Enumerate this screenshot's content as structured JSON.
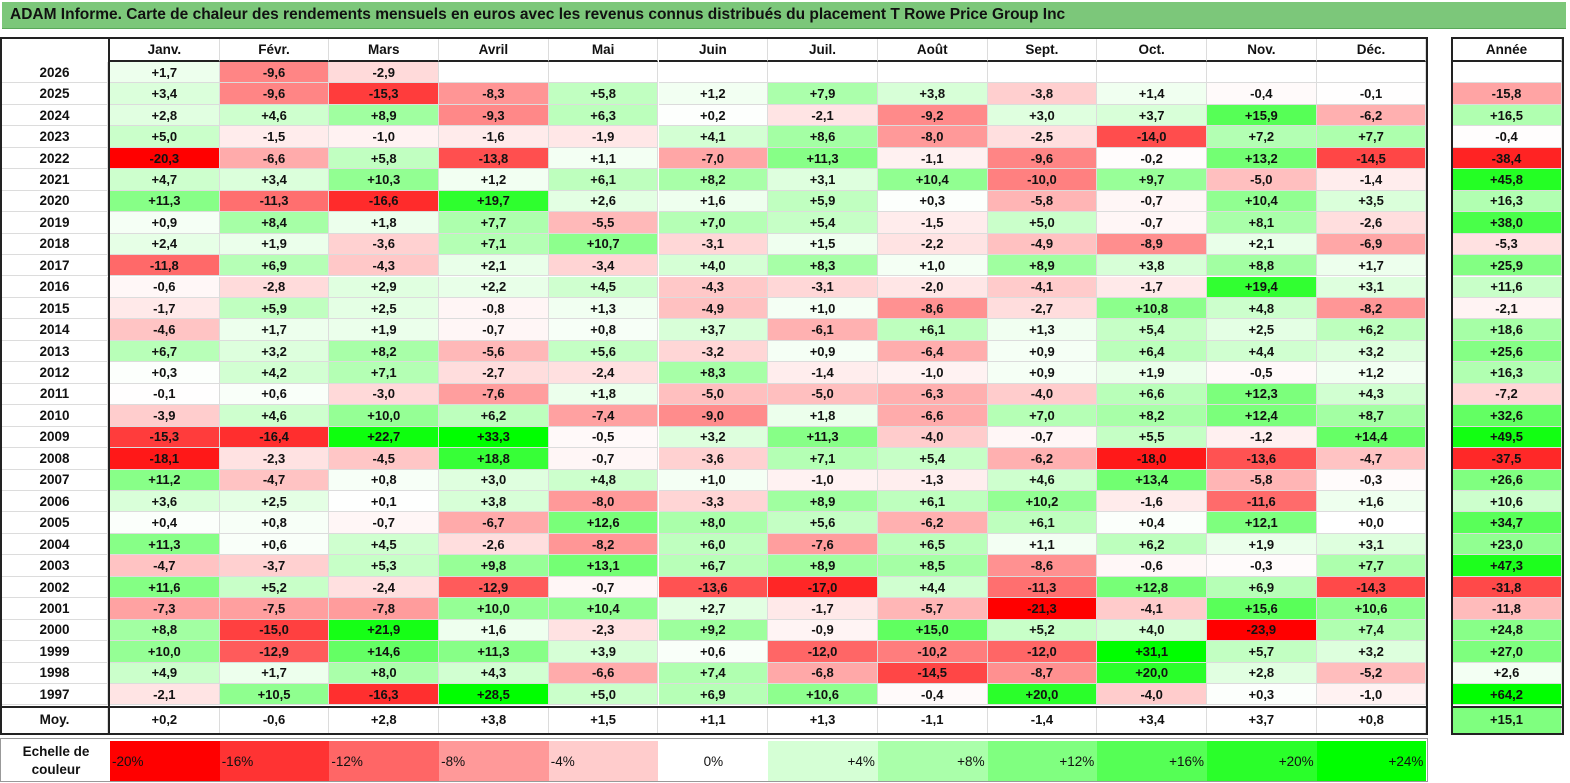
{
  "title": "ADAM Informe. Carte de chaleur des rendements mensuels en euros avec les revenus connus distribués du placement T Rowe Price Group Inc",
  "chart_data": {
    "type": "heatmap",
    "title": "ADAM Informe. Carte de chaleur des rendements mensuels en euros avec les revenus connus distribués du placement T Rowe Price Group Inc",
    "columns": [
      "Janv.",
      "Févr.",
      "Mars",
      "Avril",
      "Mai",
      "Juin",
      "Juil.",
      "Août",
      "Sept.",
      "Oct.",
      "Nov.",
      "Déc."
    ],
    "year_header": "Année",
    "rows": [
      {
        "label": "2026",
        "values": [
          "+1,7",
          "-9,6",
          "-2,9",
          "",
          "",
          "",
          "",
          "",
          "",
          "",
          "",
          ""
        ],
        "year": ""
      },
      {
        "label": "2025",
        "values": [
          "+3,4",
          "-9,6",
          "-15,3",
          "-8,3",
          "+5,8",
          "+1,2",
          "+7,9",
          "+3,8",
          "-3,8",
          "+1,4",
          "-0,4",
          "-0,1"
        ],
        "year": "-15,8"
      },
      {
        "label": "2024",
        "values": [
          "+2,8",
          "+4,6",
          "+8,9",
          "-9,3",
          "+6,3",
          "+0,2",
          "-2,1",
          "-9,2",
          "+3,0",
          "+3,7",
          "+15,9",
          "-6,2"
        ],
        "year": "+16,5"
      },
      {
        "label": "2023",
        "values": [
          "+5,0",
          "-1,5",
          "-1,0",
          "-1,6",
          "-1,9",
          "+4,1",
          "+8,6",
          "-8,0",
          "-2,5",
          "-14,0",
          "+7,2",
          "+7,7"
        ],
        "year": "-0,4"
      },
      {
        "label": "2022",
        "values": [
          "-20,3",
          "-6,6",
          "+5,8",
          "-13,8",
          "+1,1",
          "-7,0",
          "+11,3",
          "-1,1",
          "-9,6",
          "-0,2",
          "+13,2",
          "-14,5"
        ],
        "year": "-38,4"
      },
      {
        "label": "2021",
        "values": [
          "+4,7",
          "+3,4",
          "+10,3",
          "+1,2",
          "+6,1",
          "+8,2",
          "+3,1",
          "+10,4",
          "-10,0",
          "+9,7",
          "-5,0",
          "-1,4"
        ],
        "year": "+45,8"
      },
      {
        "label": "2020",
        "values": [
          "+11,3",
          "-11,3",
          "-16,6",
          "+19,7",
          "+2,6",
          "+1,6",
          "+5,9",
          "+0,3",
          "-5,8",
          "-0,7",
          "+10,4",
          "+3,5"
        ],
        "year": "+16,3"
      },
      {
        "label": "2019",
        "values": [
          "+0,9",
          "+8,4",
          "+1,8",
          "+7,7",
          "-5,5",
          "+7,0",
          "+5,4",
          "-1,5",
          "+5,0",
          "-0,7",
          "+8,1",
          "-2,6"
        ],
        "year": "+38,0"
      },
      {
        "label": "2018",
        "values": [
          "+2,4",
          "+1,9",
          "-3,6",
          "+7,1",
          "+10,7",
          "-3,1",
          "+1,5",
          "-2,2",
          "-4,9",
          "-8,9",
          "+2,1",
          "-6,9"
        ],
        "year": "-5,3"
      },
      {
        "label": "2017",
        "values": [
          "-11,8",
          "+6,9",
          "-4,3",
          "+2,1",
          "-3,4",
          "+4,0",
          "+8,3",
          "+1,0",
          "+8,9",
          "+3,8",
          "+8,8",
          "+1,7"
        ],
        "year": "+25,9"
      },
      {
        "label": "2016",
        "values": [
          "-0,6",
          "-2,8",
          "+2,9",
          "+2,2",
          "+4,5",
          "-4,3",
          "-3,1",
          "-2,0",
          "-4,1",
          "-1,7",
          "+19,4",
          "+3,1"
        ],
        "year": "+11,6"
      },
      {
        "label": "2015",
        "values": [
          "-1,7",
          "+5,9",
          "+2,5",
          "-0,8",
          "+1,3",
          "-4,9",
          "+1,0",
          "-8,6",
          "-2,7",
          "+10,8",
          "+4,8",
          "-8,2"
        ],
        "year": "-2,1"
      },
      {
        "label": "2014",
        "values": [
          "-4,6",
          "+1,7",
          "+1,9",
          "-0,7",
          "+0,8",
          "+3,7",
          "-6,1",
          "+6,1",
          "+1,3",
          "+5,4",
          "+2,5",
          "+6,2"
        ],
        "year": "+18,6"
      },
      {
        "label": "2013",
        "values": [
          "+6,7",
          "+3,2",
          "+8,2",
          "-5,6",
          "+5,6",
          "-3,2",
          "+0,9",
          "-6,4",
          "+0,9",
          "+6,4",
          "+4,4",
          "+3,2"
        ],
        "year": "+25,6"
      },
      {
        "label": "2012",
        "values": [
          "+0,3",
          "+4,2",
          "+7,1",
          "-2,7",
          "-2,4",
          "+8,3",
          "-1,4",
          "-1,0",
          "+0,9",
          "+1,9",
          "-0,5",
          "+1,2"
        ],
        "year": "+16,3"
      },
      {
        "label": "2011",
        "values": [
          "-0,1",
          "+0,6",
          "-3,0",
          "-7,6",
          "+1,8",
          "-5,0",
          "-5,0",
          "-6,3",
          "-4,0",
          "+6,6",
          "+12,3",
          "+4,3"
        ],
        "year": "-7,2"
      },
      {
        "label": "2010",
        "values": [
          "-3,9",
          "+4,6",
          "+10,0",
          "+6,2",
          "-7,4",
          "-9,0",
          "+1,8",
          "-6,6",
          "+7,0",
          "+8,2",
          "+12,4",
          "+8,7"
        ],
        "year": "+32,6"
      },
      {
        "label": "2009",
        "values": [
          "-15,3",
          "-16,4",
          "+22,7",
          "+33,3",
          "-0,5",
          "+3,2",
          "+11,3",
          "-4,0",
          "-0,7",
          "+5,5",
          "-1,2",
          "+14,4"
        ],
        "year": "+49,5"
      },
      {
        "label": "2008",
        "values": [
          "-18,1",
          "-2,3",
          "-4,5",
          "+18,8",
          "-0,7",
          "-3,6",
          "+7,1",
          "+5,4",
          "-6,2",
          "-18,0",
          "-13,6",
          "-4,7"
        ],
        "year": "-37,5"
      },
      {
        "label": "2007",
        "values": [
          "+11,2",
          "-4,7",
          "+0,8",
          "+3,0",
          "+4,8",
          "+1,0",
          "-1,0",
          "-1,3",
          "+4,6",
          "+13,4",
          "-5,8",
          "-0,3"
        ],
        "year": "+26,6"
      },
      {
        "label": "2006",
        "values": [
          "+3,6",
          "+2,5",
          "+0,1",
          "+3,8",
          "-8,0",
          "-3,3",
          "+8,9",
          "+6,1",
          "+10,2",
          "-1,6",
          "-11,6",
          "+1,6"
        ],
        "year": "+10,6"
      },
      {
        "label": "2005",
        "values": [
          "+0,4",
          "+0,8",
          "-0,7",
          "-6,7",
          "+12,6",
          "+8,0",
          "+5,6",
          "-6,2",
          "+6,1",
          "+0,4",
          "+12,1",
          "+0,0"
        ],
        "year": "+34,7"
      },
      {
        "label": "2004",
        "values": [
          "+11,3",
          "+0,6",
          "+4,5",
          "-2,6",
          "-8,2",
          "+6,0",
          "-7,6",
          "+6,5",
          "+1,1",
          "+6,2",
          "+1,9",
          "+3,1"
        ],
        "year": "+23,0"
      },
      {
        "label": "2003",
        "values": [
          "-4,7",
          "-3,7",
          "+5,3",
          "+9,8",
          "+13,1",
          "+6,7",
          "+8,9",
          "+8,5",
          "-8,6",
          "-0,6",
          "-0,3",
          "+7,7"
        ],
        "year": "+47,3"
      },
      {
        "label": "2002",
        "values": [
          "+11,6",
          "+5,2",
          "-2,4",
          "-12,9",
          "-0,7",
          "-13,6",
          "-17,0",
          "+4,4",
          "-11,3",
          "+12,8",
          "+6,9",
          "-14,3"
        ],
        "year": "-31,8"
      },
      {
        "label": "2001",
        "values": [
          "-7,3",
          "-7,5",
          "-7,8",
          "+10,0",
          "+10,4",
          "+2,7",
          "-1,7",
          "-5,7",
          "-21,3",
          "-4,1",
          "+15,6",
          "+10,6"
        ],
        "year": "-11,8"
      },
      {
        "label": "2000",
        "values": [
          "+8,8",
          "-15,0",
          "+21,9",
          "+1,6",
          "-2,3",
          "+9,2",
          "-0,9",
          "+15,0",
          "+5,2",
          "+4,0",
          "-23,9",
          "+7,4"
        ],
        "year": "+24,8"
      },
      {
        "label": "1999",
        "values": [
          "+10,0",
          "-12,9",
          "+14,6",
          "+11,3",
          "+3,9",
          "+0,6",
          "-12,0",
          "-10,2",
          "-12,0",
          "+31,1",
          "+5,7",
          "+3,2"
        ],
        "year": "+27,0"
      },
      {
        "label": "1998",
        "values": [
          "+4,9",
          "+1,7",
          "+8,0",
          "+4,3",
          "-6,6",
          "+7,4",
          "-6,8",
          "-14,5",
          "-8,7",
          "+20,0",
          "+2,8",
          "-5,2"
        ],
        "year": "+2,6"
      },
      {
        "label": "1997",
        "values": [
          "-2,1",
          "+10,5",
          "-16,3",
          "+28,5",
          "+5,0",
          "+6,9",
          "+10,6",
          "-0,4",
          "+20,0",
          "-4,0",
          "+0,3",
          "-1,0"
        ],
        "year": "+64,2"
      }
    ],
    "average": {
      "label": "Moy.",
      "values": [
        "+0,2",
        "-0,6",
        "+2,8",
        "+3,8",
        "+1,5",
        "+1,1",
        "+1,3",
        "-1,1",
        "-1,4",
        "+3,4",
        "+3,7",
        "+0,8"
      ],
      "year": "+15,1"
    },
    "scale": {
      "label": "Echelle de couleur",
      "steps": [
        {
          "text": "-20%",
          "value": -20,
          "align": "left"
        },
        {
          "text": "-16%",
          "value": -16,
          "align": "left"
        },
        {
          "text": "-12%",
          "value": -12,
          "align": "left"
        },
        {
          "text": "-8%",
          "value": -8,
          "align": "left"
        },
        {
          "text": "-4%",
          "value": -4,
          "align": "left"
        },
        {
          "text": "0%",
          "value": 0,
          "align": "center"
        },
        {
          "text": "+4%",
          "value": 4,
          "align": "right"
        },
        {
          "text": "+8%",
          "value": 8,
          "align": "right"
        },
        {
          "text": "+12%",
          "value": 12,
          "align": "right"
        },
        {
          "text": "+16%",
          "value": 16,
          "align": "right"
        },
        {
          "text": "+20%",
          "value": 20,
          "align": "right"
        },
        {
          "text": "+24%",
          "value": 24,
          "align": "right"
        }
      ]
    },
    "colors": {
      "negative": "#ff0000",
      "positive": "#00ff00",
      "neutral": "#ffffff",
      "title_bg": "#7cc77a"
    }
  }
}
